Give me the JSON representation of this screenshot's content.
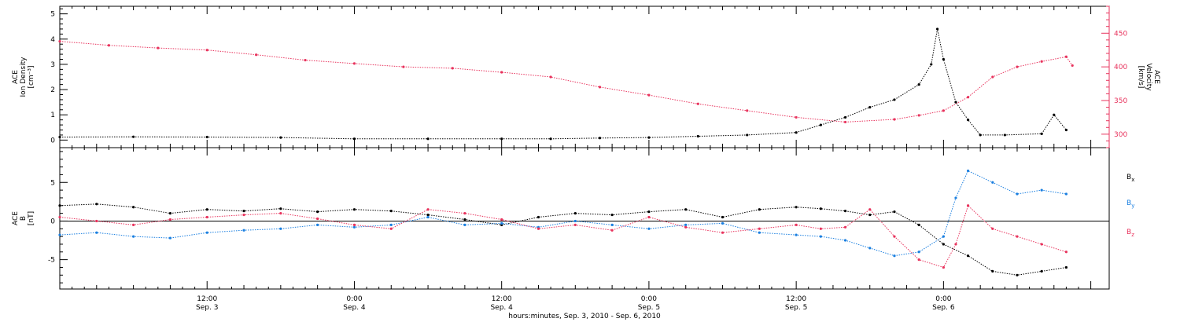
{
  "colors": {
    "black": "#000000",
    "pink": "#e8335d",
    "blue": "#1a7fe0"
  },
  "chart_data": [
    {
      "type": "scatter",
      "panel": "plasma",
      "ylabel_lines": [
        "ACE",
        "Ion Density",
        "[cm⁻³]"
      ],
      "ylim": [
        -0.3,
        5.3
      ],
      "yticks": [
        0,
        1,
        2,
        3,
        4,
        5
      ],
      "y2label_lines": [
        "ACE",
        "Velocity",
        "[km/s]"
      ],
      "y2lim": [
        280,
        490
      ],
      "y2ticks": [
        300,
        350,
        400,
        450
      ],
      "xlim": [
        0,
        85.5
      ],
      "series": [
        {
          "name": "",
          "color": "#000000",
          "axis": "left",
          "points": [
            [
              0,
              0.12
            ],
            [
              6,
              0.13
            ],
            [
              12,
              0.12
            ],
            [
              18,
              0.1
            ],
            [
              24,
              0.05
            ],
            [
              30,
              0.05
            ],
            [
              36,
              0.05
            ],
            [
              40,
              0.05
            ],
            [
              44,
              0.08
            ],
            [
              48,
              0.1
            ],
            [
              52,
              0.15
            ],
            [
              56,
              0.2
            ],
            [
              60,
              0.3
            ],
            [
              62,
              0.6
            ],
            [
              64,
              0.9
            ],
            [
              66,
              1.3
            ],
            [
              68,
              1.6
            ],
            [
              70,
              2.2
            ],
            [
              71,
              3.0
            ],
            [
              71.5,
              4.4
            ],
            [
              72,
              3.2
            ],
            [
              73,
              1.5
            ],
            [
              74,
              0.8
            ],
            [
              75,
              0.2
            ],
            [
              77,
              0.2
            ],
            [
              80,
              0.25
            ],
            [
              81,
              1.0
            ],
            [
              82,
              0.4
            ]
          ]
        },
        {
          "name": "",
          "color": "#e8335d",
          "axis": "right",
          "points": [
            [
              0,
              438
            ],
            [
              4,
              432
            ],
            [
              8,
              428
            ],
            [
              12,
              425
            ],
            [
              16,
              418
            ],
            [
              20,
              410
            ],
            [
              24,
              405
            ],
            [
              28,
              400
            ],
            [
              32,
              398
            ],
            [
              36,
              392
            ],
            [
              40,
              385
            ],
            [
              44,
              370
            ],
            [
              48,
              358
            ],
            [
              52,
              345
            ],
            [
              56,
              335
            ],
            [
              60,
              325
            ],
            [
              64,
              318
            ],
            [
              68,
              322
            ],
            [
              70,
              328
            ],
            [
              72,
              335
            ],
            [
              74,
              355
            ],
            [
              76,
              385
            ],
            [
              78,
              400
            ],
            [
              80,
              408
            ],
            [
              82,
              415
            ],
            [
              82.5,
              402
            ]
          ]
        }
      ]
    },
    {
      "type": "scatter",
      "panel": "magnetic-field",
      "ylabel_lines": [
        "ACE",
        "B",
        "[nT]"
      ],
      "ylim": [
        -8.8,
        9.5
      ],
      "yticks": [
        -5,
        0,
        5
      ],
      "xlim": [
        0,
        85.5
      ],
      "xticks": [
        {
          "x": 12,
          "time": "12:00",
          "date": "Sep. 3"
        },
        {
          "x": 24,
          "time": "0:00",
          "date": "Sep. 4"
        },
        {
          "x": 36,
          "time": "12:00",
          "date": "Sep. 4"
        },
        {
          "x": 48,
          "time": "0:00",
          "date": "Sep. 5"
        },
        {
          "x": 60,
          "time": "12:00",
          "date": "Sep. 5"
        },
        {
          "x": 72,
          "time": "0:00",
          "date": "Sep. 6"
        }
      ],
      "xlabel": "hours:minutes, Sep.  3, 2010 - Sep.  6, 2010",
      "series": [
        {
          "name": "Bx",
          "color": "#000000",
          "points": [
            [
              0,
              2.0
            ],
            [
              3,
              2.2
            ],
            [
              6,
              1.8
            ],
            [
              9,
              1.0
            ],
            [
              12,
              1.5
            ],
            [
              15,
              1.3
            ],
            [
              18,
              1.6
            ],
            [
              21,
              1.2
            ],
            [
              24,
              1.5
            ],
            [
              27,
              1.3
            ],
            [
              30,
              0.8
            ],
            [
              33,
              0.2
            ],
            [
              36,
              -0.5
            ],
            [
              39,
              0.5
            ],
            [
              42,
              1.0
            ],
            [
              45,
              0.8
            ],
            [
              48,
              1.2
            ],
            [
              51,
              1.5
            ],
            [
              54,
              0.5
            ],
            [
              57,
              1.5
            ],
            [
              60,
              1.8
            ],
            [
              62,
              1.6
            ],
            [
              64,
              1.3
            ],
            [
              66,
              0.8
            ],
            [
              68,
              1.2
            ],
            [
              70,
              -0.5
            ],
            [
              72,
              -3.0
            ],
            [
              74,
              -4.5
            ],
            [
              76,
              -6.5
            ],
            [
              78,
              -7.0
            ],
            [
              80,
              -6.5
            ],
            [
              82,
              -6.0
            ]
          ]
        },
        {
          "name": "By",
          "color": "#1a7fe0",
          "points": [
            [
              0,
              -1.8
            ],
            [
              3,
              -1.5
            ],
            [
              6,
              -2.0
            ],
            [
              9,
              -2.2
            ],
            [
              12,
              -1.5
            ],
            [
              15,
              -1.2
            ],
            [
              18,
              -1.0
            ],
            [
              21,
              -0.5
            ],
            [
              24,
              -0.8
            ],
            [
              27,
              -0.5
            ],
            [
              30,
              0.5
            ],
            [
              33,
              -0.5
            ],
            [
              36,
              -0.3
            ],
            [
              39,
              -0.8
            ],
            [
              42,
              0.0
            ],
            [
              45,
              -0.5
            ],
            [
              48,
              -1.0
            ],
            [
              51,
              -0.5
            ],
            [
              54,
              -0.3
            ],
            [
              57,
              -1.5
            ],
            [
              60,
              -1.8
            ],
            [
              62,
              -2.0
            ],
            [
              64,
              -2.5
            ],
            [
              66,
              -3.5
            ],
            [
              68,
              -4.5
            ],
            [
              70,
              -4.0
            ],
            [
              72,
              -2.0
            ],
            [
              73,
              3.0
            ],
            [
              74,
              6.5
            ],
            [
              76,
              5.0
            ],
            [
              78,
              3.5
            ],
            [
              80,
              4.0
            ],
            [
              82,
              3.5
            ]
          ]
        },
        {
          "name": "Bz",
          "color": "#e8335d",
          "points": [
            [
              0,
              0.5
            ],
            [
              3,
              0.0
            ],
            [
              6,
              -0.5
            ],
            [
              9,
              0.2
            ],
            [
              12,
              0.5
            ],
            [
              15,
              0.8
            ],
            [
              18,
              1.0
            ],
            [
              21,
              0.3
            ],
            [
              24,
              -0.5
            ],
            [
              27,
              -1.0
            ],
            [
              30,
              1.5
            ],
            [
              33,
              1.0
            ],
            [
              36,
              0.2
            ],
            [
              39,
              -1.0
            ],
            [
              42,
              -0.5
            ],
            [
              45,
              -1.2
            ],
            [
              48,
              0.5
            ],
            [
              51,
              -0.8
            ],
            [
              54,
              -1.5
            ],
            [
              57,
              -1.0
            ],
            [
              60,
              -0.5
            ],
            [
              62,
              -1.0
            ],
            [
              64,
              -0.8
            ],
            [
              66,
              1.5
            ],
            [
              68,
              -2.0
            ],
            [
              70,
              -5.0
            ],
            [
              72,
              -6.0
            ],
            [
              73,
              -3.0
            ],
            [
              74,
              2.0
            ],
            [
              76,
              -1.0
            ],
            [
              78,
              -2.0
            ],
            [
              80,
              -3.0
            ],
            [
              82,
              -4.0
            ]
          ]
        }
      ],
      "legend": [
        {
          "label": "B",
          "sub": "x",
          "color": "#000000"
        },
        {
          "label": "B",
          "sub": "y",
          "color": "#1a7fe0"
        },
        {
          "label": "B",
          "sub": "z",
          "color": "#e8335d"
        }
      ]
    }
  ]
}
